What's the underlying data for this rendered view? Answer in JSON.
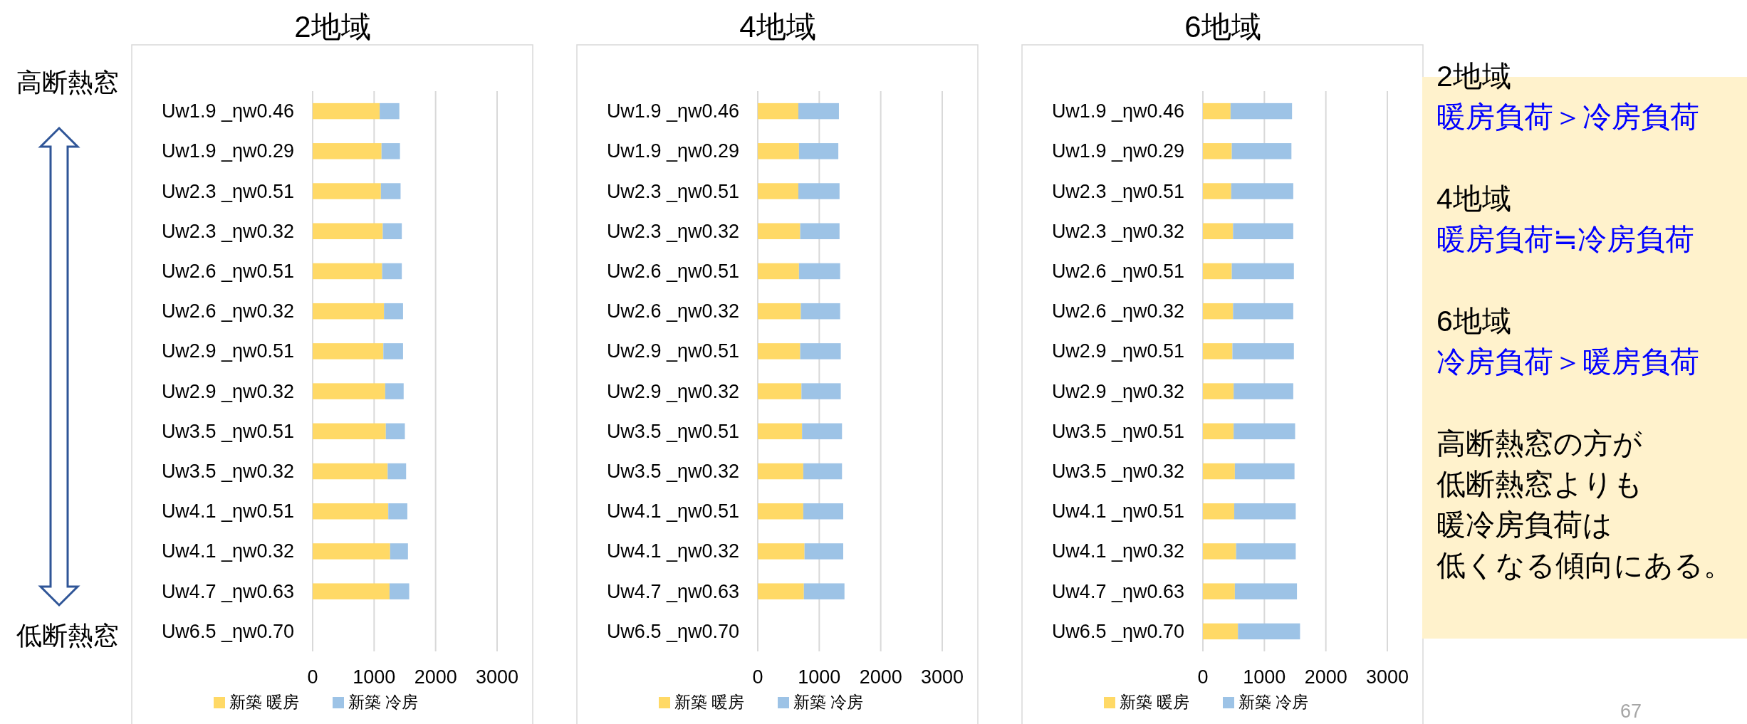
{
  "chart_data": [
    {
      "type": "bar",
      "title": "2地域",
      "orientation": "horizontal",
      "stacked": true,
      "grid": "x",
      "legend": "bottom",
      "categories": [
        "Uw1.9 _ηw0.46",
        "Uw1.9 _ηw0.29",
        "Uw2.3 _ηw0.51",
        "Uw2.3 _ηw0.32",
        "Uw2.6 _ηw0.51",
        "Uw2.6 _ηw0.32",
        "Uw2.9 _ηw0.51",
        "Uw2.9 _ηw0.32",
        "Uw3.5 _ηw0.51",
        "Uw3.5 _ηw0.32",
        "Uw4.1 _ηw0.51",
        "Uw4.1 _ηw0.32",
        "Uw4.7 _ηw0.63",
        "Uw6.5 _ηw0.70"
      ],
      "series": [
        {
          "name": "新築 暖房",
          "color": "#ffd966",
          "values": [
            1090,
            1120,
            1110,
            1140,
            1130,
            1160,
            1150,
            1180,
            1190,
            1220,
            1230,
            1260,
            1250,
            null
          ]
        },
        {
          "name": "新築 冷房",
          "color": "#9dc3e6",
          "values": [
            320,
            300,
            320,
            310,
            320,
            310,
            320,
            300,
            310,
            300,
            310,
            290,
            320,
            null
          ]
        }
      ],
      "xlim": [
        0,
        3000
      ],
      "xticks": [
        0,
        1000,
        2000,
        3000
      ],
      "annotations": [
        "高断熱窓",
        "低断熱窓"
      ]
    },
    {
      "type": "bar",
      "title": "4地域",
      "orientation": "horizontal",
      "stacked": true,
      "grid": "x",
      "legend": "bottom",
      "categories": [
        "Uw1.9 _ηw0.46",
        "Uw1.9 _ηw0.29",
        "Uw2.3 _ηw0.51",
        "Uw2.3 _ηw0.32",
        "Uw2.6 _ηw0.51",
        "Uw2.6 _ηw0.32",
        "Uw2.9 _ηw0.51",
        "Uw2.9 _ηw0.32",
        "Uw3.5 _ηw0.51",
        "Uw3.5 _ηw0.32",
        "Uw4.1 _ηw0.51",
        "Uw4.1 _ηw0.32",
        "Uw4.7 _ηw0.63",
        "Uw6.5 _ηw0.70"
      ],
      "series": [
        {
          "name": "新築 暖房",
          "color": "#ffd966",
          "values": [
            660,
            670,
            660,
            690,
            670,
            700,
            690,
            710,
            720,
            740,
            740,
            760,
            750,
            null
          ]
        },
        {
          "name": "新築 冷房",
          "color": "#9dc3e6",
          "values": [
            660,
            640,
            670,
            640,
            670,
            640,
            660,
            640,
            650,
            630,
            650,
            630,
            660,
            null
          ]
        }
      ],
      "xlim": [
        0,
        3000
      ],
      "xticks": [
        0,
        1000,
        2000,
        3000
      ]
    },
    {
      "type": "bar",
      "title": "6地域",
      "orientation": "horizontal",
      "stacked": true,
      "grid": "x",
      "legend": "bottom",
      "categories": [
        "Uw1.9 _ηw0.46",
        "Uw1.9 _ηw0.29",
        "Uw2.3 _ηw0.51",
        "Uw2.3 _ηw0.32",
        "Uw2.6 _ηw0.51",
        "Uw2.6 _ηw0.32",
        "Uw2.9 _ηw0.51",
        "Uw2.9 _ηw0.32",
        "Uw3.5 _ηw0.51",
        "Uw3.5 _ηw0.32",
        "Uw4.1 _ηw0.51",
        "Uw4.1 _ηw0.32",
        "Uw4.7 _ηw0.63",
        "Uw6.5 _ηw0.70"
      ],
      "series": [
        {
          "name": "新築 暖房",
          "color": "#ffd966",
          "values": [
            450,
            470,
            460,
            490,
            470,
            490,
            480,
            500,
            500,
            520,
            510,
            540,
            520,
            570
          ]
        },
        {
          "name": "新築 冷房",
          "color": "#9dc3e6",
          "values": [
            1000,
            970,
            1010,
            980,
            1010,
            980,
            1000,
            970,
            1000,
            970,
            1000,
            970,
            1010,
            1010
          ]
        }
      ],
      "xlim": [
        0,
        3000
      ],
      "xticks": [
        0,
        1000,
        2000,
        3000
      ]
    },
    {
      "type": "other",
      "annotations": [
        "2地域",
        "暖房負荷＞冷房負荷",
        "4地域",
        "暖房負荷≒冷房負荷",
        "6地域",
        "冷房負荷＞暖房負荷",
        "高断熱窓の方が",
        "低断熱窓よりも",
        "暖冷房負荷は",
        "低くなる傾向にある。",
        "67"
      ]
    }
  ]
}
